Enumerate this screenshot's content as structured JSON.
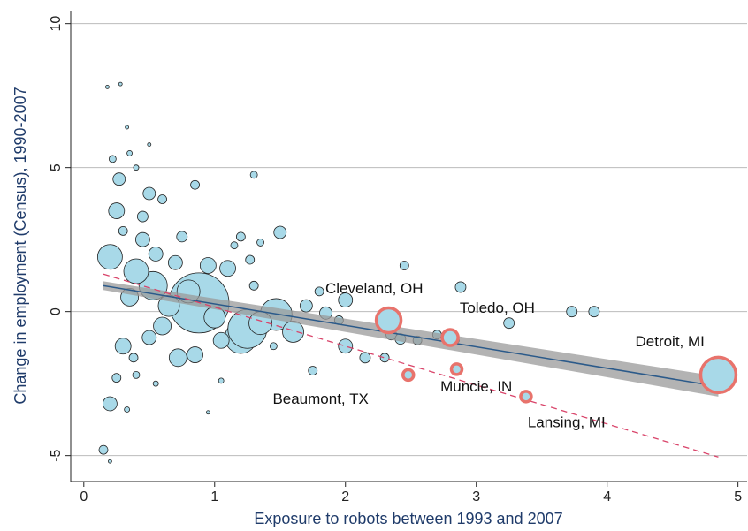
{
  "chart_data": {
    "type": "bubble",
    "x_label": "Exposure to robots between 1993 and 2007",
    "y_label": "Change in employment (Census), 1990-2007",
    "xlim": [
      -0.1,
      5.07
    ],
    "ylim": [
      -5.9,
      10.45
    ],
    "xticks": [
      0,
      1,
      2,
      3,
      4,
      5
    ],
    "yticks": [
      -5,
      0,
      5,
      10
    ],
    "grid": true,
    "series": [
      {
        "color": "#a8d9e8",
        "edge": "#222222",
        "x": [
          0.88,
          1.2,
          1.25,
          1.47,
          0.53,
          0.4,
          0.2,
          0.72,
          0.65,
          1.0,
          0.8,
          1.6,
          1.35,
          0.6,
          0.35,
          0.25,
          0.27,
          0.5,
          0.45,
          0.55,
          0.7,
          0.95,
          1.1,
          0.3,
          0.5,
          0.85,
          1.05,
          2.0,
          2.0,
          1.7,
          1.85,
          2.15,
          2.35,
          2.42,
          2.45,
          2.88,
          3.25,
          3.73,
          3.9,
          2.7,
          2.55,
          1.5,
          1.3,
          1.27,
          1.2,
          1.35,
          0.15,
          0.2,
          0.25,
          0.38,
          0.45,
          0.6,
          0.85,
          1.15,
          1.8,
          2.3,
          1.75,
          1.95,
          0.75,
          0.3,
          0.35,
          0.22,
          0.18,
          0.28,
          0.33,
          0.4,
          0.5,
          0.2,
          0.33,
          0.4,
          0.55,
          0.95,
          1.05,
          1.3,
          1.45,
          2.85
        ],
        "values": [
          0.3,
          -0.9,
          -0.6,
          -0.1,
          0.9,
          1.4,
          1.9,
          -1.6,
          0.2,
          -0.2,
          0.7,
          -0.7,
          -0.4,
          -0.5,
          0.5,
          3.5,
          4.6,
          4.1,
          2.5,
          2.0,
          1.7,
          1.6,
          1.5,
          -1.2,
          -0.9,
          -1.5,
          -1.0,
          -1.2,
          0.4,
          0.2,
          -0.05,
          -1.6,
          -0.8,
          -0.95,
          1.6,
          0.85,
          -0.4,
          0.0,
          0.0,
          -0.8,
          -1.0,
          2.75,
          4.75,
          1.8,
          2.6,
          2.4,
          -4.8,
          -3.2,
          -2.3,
          -1.6,
          3.3,
          3.9,
          4.4,
          2.3,
          0.7,
          -1.6,
          -2.05,
          -0.3,
          2.6,
          2.8,
          5.5,
          5.3,
          7.8,
          7.9,
          6.4,
          5.0,
          5.8,
          -5.2,
          -3.4,
          -2.2,
          -2.5,
          -3.5,
          -2.4,
          0.9,
          -1.2,
          -1.0
        ],
        "sizes": [
          34,
          18,
          22,
          18,
          16,
          14,
          14,
          10,
          12,
          12,
          13,
          12,
          13,
          10,
          10,
          9,
          7,
          7,
          8,
          8,
          8,
          9,
          9,
          9,
          8,
          9,
          9,
          8,
          8,
          7,
          7,
          6,
          6,
          6,
          5,
          6,
          6,
          6,
          6,
          5,
          5,
          7,
          4,
          5,
          5,
          4,
          5,
          8,
          5,
          5,
          6,
          5,
          5,
          4,
          5,
          5,
          5,
          5,
          6,
          5,
          3,
          4,
          2,
          2,
          2,
          3,
          2,
          2,
          3,
          4,
          3,
          2,
          3,
          5,
          4,
          3
        ]
      },
      {
        "color": "#a8d9e8",
        "edge": "#e8736c",
        "x": [
          2.33,
          2.8,
          4.85,
          2.85,
          3.38,
          2.48
        ],
        "values": [
          -0.3,
          -0.9,
          -2.2,
          -2.0,
          -2.95,
          -2.2
        ],
        "sizes": [
          14,
          9,
          20,
          6,
          6,
          6
        ]
      }
    ],
    "fit_line": {
      "color": "#2b5a8a",
      "x": [
        0.15,
        4.85
      ],
      "values": [
        0.9,
        -2.6
      ]
    },
    "fit_band": {
      "color": "#9a9a9a",
      "x": [
        0.15,
        4.85
      ],
      "upper": [
        1.05,
        -2.25
      ],
      "lower": [
        0.75,
        -2.95
      ]
    },
    "dashed_line": {
      "color": "#d9446a",
      "x": [
        0.15,
        4.85
      ],
      "values": [
        1.3,
        -5.05
      ]
    },
    "annotations": [
      {
        "text": "Cleveland, OH",
        "x": 2.22,
        "y": 0.77
      },
      {
        "text": "Toledo, OH",
        "x": 3.16,
        "y": 0.1
      },
      {
        "text": "Detroit, MI",
        "x": 4.48,
        "y": -1.07
      },
      {
        "text": "Muncie, IN",
        "x": 3.0,
        "y": -2.64
      },
      {
        "text": "Lansing, MI",
        "x": 3.69,
        "y": -3.87
      },
      {
        "text": "Beaumont, TX",
        "x": 1.81,
        "y": -3.07
      }
    ]
  }
}
